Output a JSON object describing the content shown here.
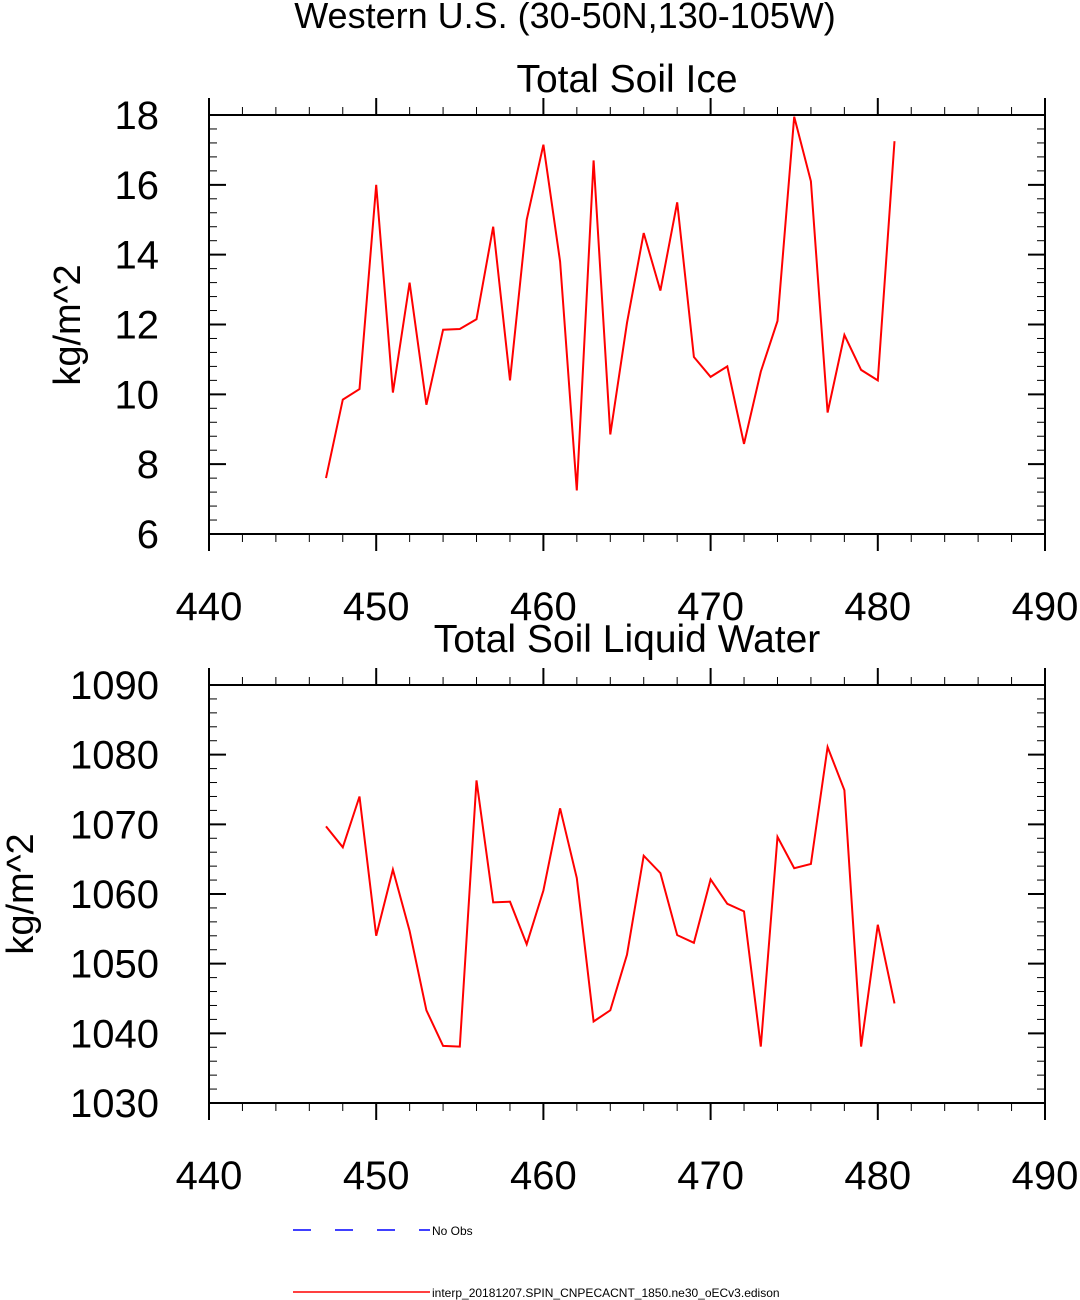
{
  "figure": {
    "title": "Western U.S. (30-50N,130-105W)"
  },
  "chart_data": [
    {
      "type": "line",
      "title": "Total Soil Ice",
      "xlabel": "",
      "ylabel": "kg/m^2",
      "xlim": [
        440,
        490
      ],
      "ylim": [
        6,
        18
      ],
      "xticks": [
        440,
        450,
        460,
        470,
        480,
        490
      ],
      "yticks": [
        6,
        8,
        10,
        12,
        14,
        16,
        18
      ],
      "x_minor_step": 2,
      "y_minor_step": 0.4,
      "series": [
        {
          "name": "interp_20181207.SPIN_CNPECACNT_1850.ne30_oECv3.edison",
          "color": "#ff0000",
          "x": [
            447,
            448,
            449,
            450,
            451,
            452,
            453,
            454,
            455,
            456,
            457,
            458,
            459,
            460,
            461,
            462,
            463,
            464,
            465,
            466,
            467,
            468,
            469,
            470,
            471,
            472,
            473,
            474,
            475,
            476,
            477,
            478,
            479,
            480,
            481
          ],
          "y": [
            7.6,
            9.85,
            10.15,
            16.0,
            10.05,
            13.2,
            9.7,
            11.85,
            11.87,
            12.15,
            14.8,
            10.4,
            15.0,
            17.15,
            13.8,
            7.25,
            16.7,
            8.85,
            12.05,
            14.62,
            12.97,
            15.5,
            11.07,
            10.5,
            10.8,
            8.58,
            10.65,
            12.1,
            17.95,
            16.1,
            9.48,
            11.7,
            10.7,
            10.4,
            17.25
          ]
        }
      ]
    },
    {
      "type": "line",
      "title": "Total Soil Liquid Water",
      "xlabel": "",
      "ylabel": "kg/m^2",
      "xlim": [
        440,
        490
      ],
      "ylim": [
        1030,
        1090
      ],
      "xticks": [
        440,
        450,
        460,
        470,
        480,
        490
      ],
      "yticks": [
        1030,
        1040,
        1050,
        1060,
        1070,
        1080,
        1090
      ],
      "x_minor_step": 2,
      "y_minor_step": 2,
      "series": [
        {
          "name": "interp_20181207.SPIN_CNPECACNT_1850.ne30_oECv3.edison",
          "color": "#ff0000",
          "x": [
            447,
            448,
            449,
            450,
            451,
            452,
            453,
            454,
            455,
            456,
            457,
            458,
            459,
            460,
            461,
            462,
            463,
            464,
            465,
            466,
            467,
            468,
            469,
            470,
            471,
            472,
            473,
            474,
            475,
            476,
            477,
            478,
            479,
            480,
            481
          ],
          "y": [
            1069.7,
            1066.7,
            1074.0,
            1054.0,
            1063.5,
            1054.7,
            1043.3,
            1038.2,
            1038.1,
            1076.3,
            1058.8,
            1058.9,
            1052.8,
            1060.5,
            1072.3,
            1062.3,
            1041.7,
            1043.3,
            1051.3,
            1065.5,
            1063.0,
            1054.1,
            1053.0,
            1062.1,
            1058.6,
            1057.5,
            1038.1,
            1068.2,
            1063.7,
            1064.3,
            1081.1,
            1074.9,
            1038.1,
            1055.6,
            1044.3
          ]
        }
      ]
    }
  ],
  "legend": {
    "items": [
      {
        "label": "No Obs",
        "color": "#0000ff",
        "style": "dashed"
      },
      {
        "label": "interp_20181207.SPIN_CNPECACNT_1850.ne30_oECv3.edison",
        "color": "#ff0000",
        "style": "solid"
      }
    ]
  }
}
